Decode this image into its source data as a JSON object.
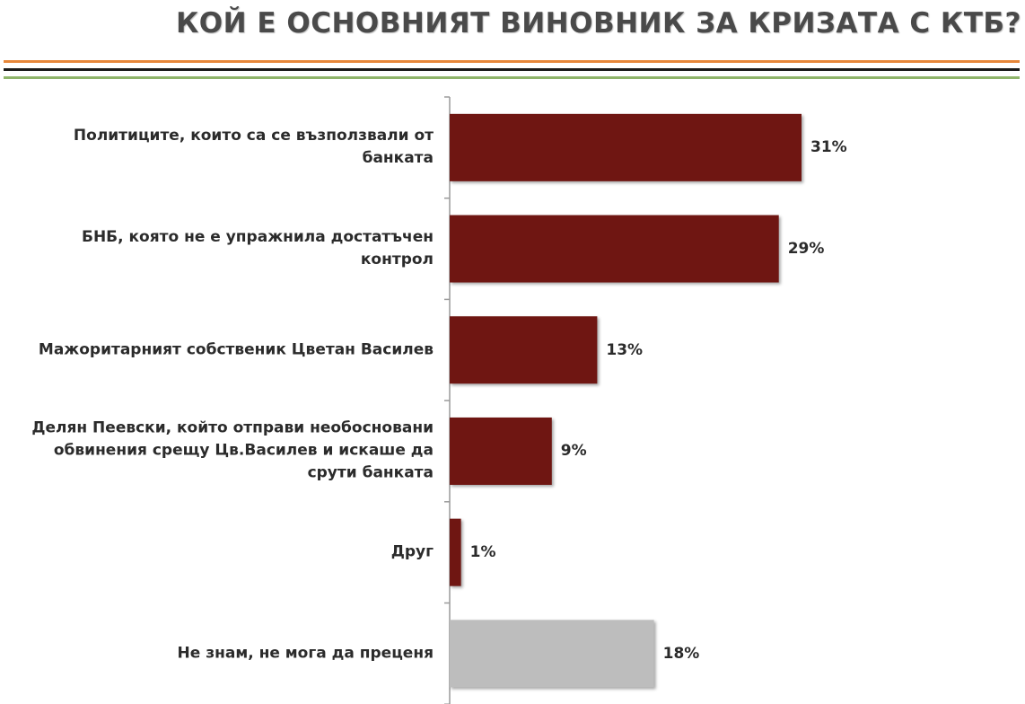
{
  "header": {
    "title": "КОЙ Е ОСНОВНИЯТ ВИНОВНИК ЗА КРИЗАТА С КТБ?",
    "rule_colors": [
      "#e6873a",
      "#1a1a1a",
      "#8fb46a"
    ]
  },
  "chart_data": {
    "type": "bar",
    "orientation": "horizontal",
    "title": "КОЙ Е ОСНОВНИЯТ ВИНОВНИК ЗА КРИЗАТА С КТБ?",
    "categories": [
      "Политиците, които са се възползвали от банката",
      "БНБ, която не е упражнила достатъчен контрол",
      "Мажоритарният собственик Цветан Василев",
      "Делян Пеевски, който отправи необосновани обвинения срещу Цв.Василев и искаше да срути банката",
      "Друг",
      "Не знам, не мога да преценя"
    ],
    "values": [
      31,
      29,
      13,
      9,
      1,
      18
    ],
    "value_labels": [
      "31%",
      "29%",
      "13%",
      "9%",
      "1%",
      "18%"
    ],
    "bar_colors": [
      "#6f1612",
      "#6f1612",
      "#6f1612",
      "#6f1612",
      "#6f1612",
      "#bdbdbd"
    ],
    "xlim": [
      0,
      50
    ],
    "grid": false,
    "legend": "none"
  }
}
